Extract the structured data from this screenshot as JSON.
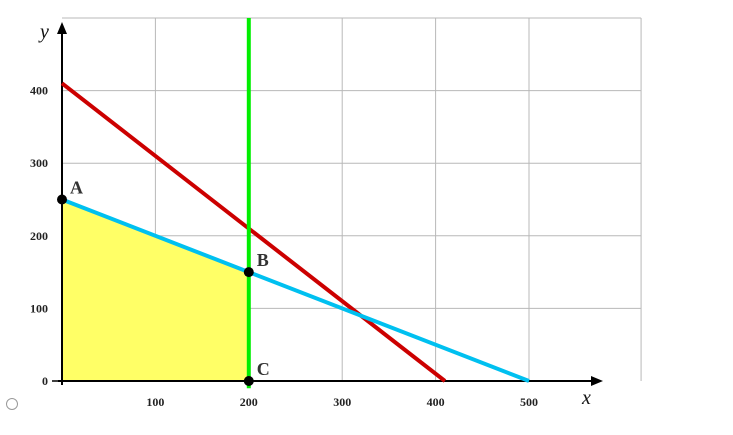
{
  "chart_data": {
    "type": "line",
    "title": "",
    "xlabel": "x",
    "ylabel": "y",
    "xlim": [
      0,
      620
    ],
    "ylim": [
      0,
      500
    ],
    "x_ticks": [
      100,
      200,
      300,
      400,
      500
    ],
    "y_ticks": [
      0,
      100,
      200,
      300,
      400
    ],
    "grid": true,
    "series": [
      {
        "color": "#cc0000",
        "points": [
          [
            0,
            410
          ],
          [
            410,
            0
          ]
        ]
      },
      {
        "color": "#00c0f0",
        "points": [
          [
            0,
            250
          ],
          [
            500,
            0
          ]
        ]
      },
      {
        "color": "#00ee00",
        "points": [
          [
            200,
            -10
          ],
          [
            200,
            500
          ]
        ]
      }
    ],
    "feasible_region": {
      "color": "#ffff66",
      "points": [
        [
          0,
          0
        ],
        [
          0,
          250
        ],
        [
          200,
          150
        ],
        [
          200,
          0
        ]
      ]
    },
    "points": [
      {
        "label": "A",
        "x": 0,
        "y": 250
      },
      {
        "label": "B",
        "x": 200,
        "y": 150
      },
      {
        "label": "C",
        "x": 200,
        "y": 0
      }
    ]
  },
  "answer_option": {
    "selected": false
  }
}
